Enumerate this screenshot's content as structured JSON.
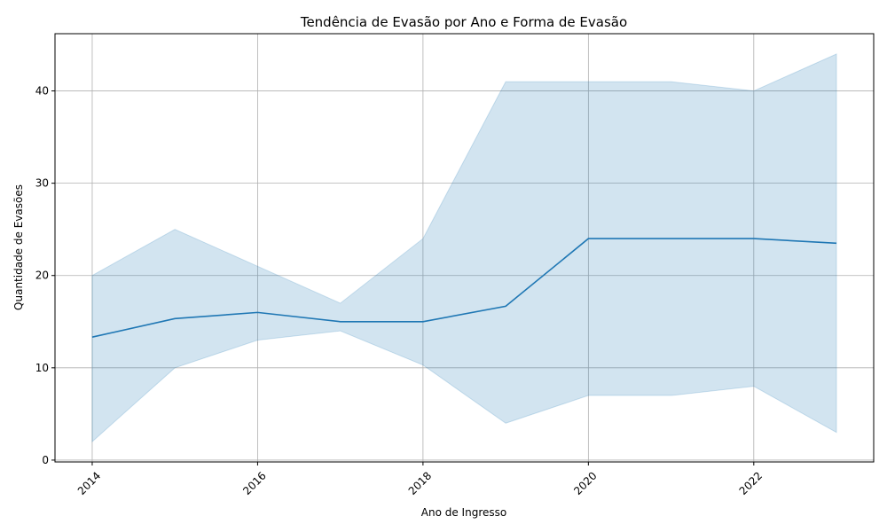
{
  "chart_data": {
    "type": "line",
    "title": "Tendência de Evasão por Ano e Forma de Evasão",
    "xlabel": "Ano de Ingresso",
    "ylabel": "Quantidade de Evasões",
    "xlim": [
      2013.55,
      2023.45
    ],
    "ylim": [
      -0.2,
      46.2
    ],
    "x_ticks": [
      2014,
      2016,
      2018,
      2020,
      2022
    ],
    "y_ticks": [
      0,
      10,
      20,
      30,
      40
    ],
    "grid": true,
    "legend": "none",
    "series": [
      {
        "x": [
          2014,
          2015,
          2016,
          2017,
          2018,
          2019,
          2020,
          2021,
          2022,
          2023
        ],
        "values": [
          13.33,
          15.33,
          16.0,
          15.0,
          15.0,
          16.67,
          24.0,
          24.0,
          24.0,
          23.5
        ],
        "band_lower": [
          2,
          10,
          13,
          14,
          10.3,
          4,
          7,
          7,
          8,
          3
        ],
        "band_upper": [
          20,
          25,
          21,
          17,
          24,
          41,
          41,
          41,
          40,
          44
        ],
        "color": "#1f77b4",
        "band_color": "#1f77b4"
      }
    ]
  }
}
